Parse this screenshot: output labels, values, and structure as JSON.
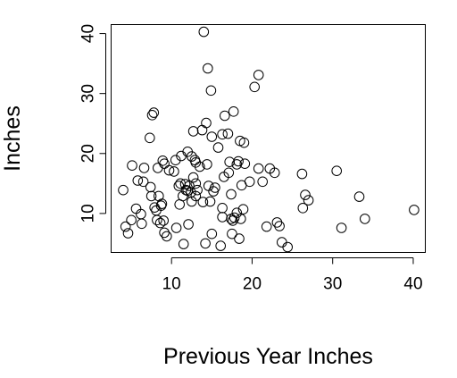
{
  "chart_data": {
    "type": "scatter",
    "title": "",
    "xlabel": "Previous Year Inches",
    "ylabel": "Inches",
    "xlim": [
      2.5,
      41.5
    ],
    "ylim": [
      3.5,
      41.5
    ],
    "xticks": [
      10,
      20,
      30,
      40
    ],
    "yticks": [
      10,
      20,
      30,
      40
    ],
    "grid": false,
    "marker": "open-circle",
    "color": "#000000",
    "series": [
      {
        "points": [
          [
            4.0,
            13.9
          ],
          [
            4.3,
            7.8
          ],
          [
            4.6,
            6.7
          ],
          [
            5.0,
            8.9
          ],
          [
            5.1,
            18.0
          ],
          [
            5.6,
            10.8
          ],
          [
            5.8,
            15.5
          ],
          [
            6.2,
            9.9
          ],
          [
            6.3,
            8.3
          ],
          [
            6.5,
            15.3
          ],
          [
            6.6,
            17.6
          ],
          [
            7.3,
            22.6
          ],
          [
            7.4,
            14.4
          ],
          [
            7.5,
            12.9
          ],
          [
            7.6,
            26.4
          ],
          [
            7.8,
            26.8
          ],
          [
            7.9,
            11.0
          ],
          [
            8.1,
            10.5
          ],
          [
            8.2,
            8.9
          ],
          [
            8.3,
            17.6
          ],
          [
            8.4,
            12.9
          ],
          [
            8.6,
            8.4
          ],
          [
            8.7,
            11.3
          ],
          [
            8.8,
            11.6
          ],
          [
            8.9,
            18.8
          ],
          [
            9.0,
            8.8
          ],
          [
            9.1,
            18.3
          ],
          [
            9.1,
            6.8
          ],
          [
            9.4,
            6.2
          ],
          [
            9.7,
            17.2
          ],
          [
            10.3,
            17.0
          ],
          [
            10.5,
            18.9
          ],
          [
            10.6,
            7.6
          ],
          [
            10.9,
            14.6
          ],
          [
            11.0,
            11.5
          ],
          [
            11.1,
            15.0
          ],
          [
            11.2,
            19.6
          ],
          [
            11.4,
            12.9
          ],
          [
            11.5,
            4.9
          ],
          [
            11.7,
            14.9
          ],
          [
            11.8,
            13.9
          ],
          [
            12.0,
            13.8
          ],
          [
            12.0,
            20.3
          ],
          [
            12.1,
            8.2
          ],
          [
            12.2,
            14.6
          ],
          [
            12.4,
            13.5
          ],
          [
            12.5,
            12.0
          ],
          [
            12.5,
            19.5
          ],
          [
            12.7,
            23.7
          ],
          [
            12.7,
            16.0
          ],
          [
            12.9,
            18.9
          ],
          [
            13.0,
            12.9
          ],
          [
            13.0,
            18.5
          ],
          [
            13.0,
            15.0
          ],
          [
            13.2,
            13.9
          ],
          [
            13.5,
            17.8
          ],
          [
            13.8,
            23.9
          ],
          [
            13.9,
            11.9
          ],
          [
            14.0,
            40.3
          ],
          [
            14.2,
            5.0
          ],
          [
            14.3,
            25.1
          ],
          [
            14.4,
            18.2
          ],
          [
            14.5,
            34.2
          ],
          [
            14.6,
            14.6
          ],
          [
            14.8,
            12.0
          ],
          [
            14.9,
            30.5
          ],
          [
            15.0,
            22.8
          ],
          [
            15.0,
            6.6
          ],
          [
            15.2,
            13.7
          ],
          [
            15.4,
            14.3
          ],
          [
            15.8,
            21.0
          ],
          [
            16.1,
            4.6
          ],
          [
            16.3,
            23.2
          ],
          [
            16.3,
            10.9
          ],
          [
            16.3,
            9.4
          ],
          [
            16.5,
            16.1
          ],
          [
            16.6,
            26.3
          ],
          [
            17.0,
            23.3
          ],
          [
            17.1,
            16.8
          ],
          [
            17.2,
            18.6
          ],
          [
            17.4,
            9.1
          ],
          [
            17.4,
            13.2
          ],
          [
            17.5,
            6.6
          ],
          [
            17.6,
            8.8
          ],
          [
            17.7,
            27.0
          ],
          [
            17.8,
            9.3
          ],
          [
            18.1,
            10.1
          ],
          [
            18.1,
            18.2
          ],
          [
            18.3,
            18.7
          ],
          [
            18.4,
            5.8
          ],
          [
            18.5,
            22.1
          ],
          [
            18.6,
            9.1
          ],
          [
            18.7,
            14.7
          ],
          [
            18.9,
            10.7
          ],
          [
            19.0,
            21.8
          ],
          [
            19.1,
            18.3
          ],
          [
            19.7,
            15.3
          ],
          [
            20.3,
            31.1
          ],
          [
            20.8,
            17.5
          ],
          [
            20.8,
            33.1
          ],
          [
            21.3,
            15.3
          ],
          [
            21.8,
            7.8
          ],
          [
            22.2,
            17.5
          ],
          [
            22.8,
            16.8
          ],
          [
            23.1,
            8.5
          ],
          [
            23.4,
            7.9
          ],
          [
            23.7,
            5.2
          ],
          [
            24.4,
            4.4
          ],
          [
            26.2,
            16.6
          ],
          [
            26.3,
            10.9
          ],
          [
            26.6,
            13.1
          ],
          [
            27.0,
            12.2
          ],
          [
            30.5,
            17.1
          ],
          [
            31.1,
            7.6
          ],
          [
            33.3,
            12.8
          ],
          [
            34.0,
            9.1
          ],
          [
            40.1,
            10.6
          ]
        ]
      }
    ]
  }
}
